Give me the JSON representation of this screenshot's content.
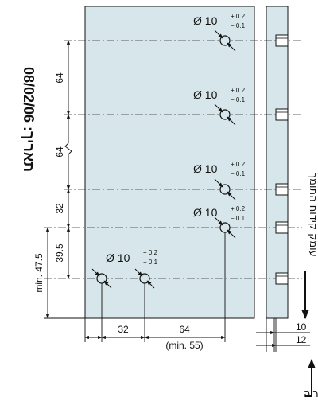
{
  "date_label": "תאריך: 08/02/06",
  "right_label": "עומק קידוח התומך",
  "bottom_label": "עומק קידוח חיבור הפרונט לגלריה",
  "holes": [
    {
      "dia": "Ø 10",
      "tol_top": "+ 0.2",
      "tol_bottom": "− 0.1"
    },
    {
      "dia": "Ø 10",
      "tol_top": "+ 0.2",
      "tol_bottom": "− 0.1"
    },
    {
      "dia": "Ø 10",
      "tol_top": "+ 0.2",
      "tol_bottom": "− 0.1"
    },
    {
      "dia": "Ø 10",
      "tol_top": "+ 0.2",
      "tol_bottom": "− 0.1"
    },
    {
      "dia": "Ø 10",
      "tol_top": "+ 0.2",
      "tol_bottom": "− 0.1"
    }
  ],
  "vertical_dims": [
    "64",
    "64",
    "32",
    "39.5"
  ],
  "min_dim": "min. 47.5",
  "horizontal_dims": {
    "first": "32",
    "second": "64",
    "second_note": "(min. 55)"
  },
  "depth_dims": {
    "inner": "10",
    "outer": "12"
  },
  "colors": {
    "panel": "#d6e6ea",
    "line": "#111111",
    "centerline": "#333333"
  }
}
